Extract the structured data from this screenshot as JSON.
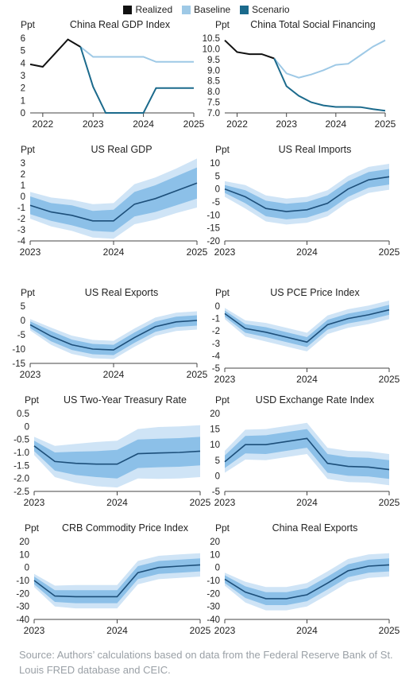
{
  "legend": {
    "items": [
      {
        "label": "Realized",
        "color": "#111111"
      },
      {
        "label": "Baseline",
        "color": "#9ec9e6"
      },
      {
        "label": "Scenario",
        "color": "#1b6a8c"
      }
    ]
  },
  "colors": {
    "realized": "#111111",
    "baseline": "#9ec9e6",
    "scenario": "#1b6a8c",
    "band_outer": "#cfe4f6",
    "band_inner": "#8cc0e8",
    "central": "#1d4f7a",
    "axis": "#444444"
  },
  "source": "Source: Authors’ calculations based on data from the Federal Reserve Bank of St. Louis FRED database and CEIC.",
  "chart_data": [
    {
      "type": "line",
      "title": "China Real GDP Index",
      "ylabel": "Ppt",
      "ylim": [
        0,
        6
      ],
      "yticks": [
        "6",
        "5",
        "4",
        "3",
        "2",
        "1",
        "0"
      ],
      "xlim": [
        2021.75,
        2025
      ],
      "xticks": [
        "2022",
        "2023",
        "2024",
        "2025"
      ],
      "series": [
        {
          "name": "Realized",
          "x": [
            2021.75,
            2022.0,
            2022.25,
            2022.5,
            2022.75
          ],
          "y": [
            3.9,
            3.7,
            4.8,
            5.9,
            5.3
          ]
        },
        {
          "name": "Baseline",
          "x": [
            2022.75,
            2023.0,
            2023.25,
            2023.5,
            2023.75,
            2024.0,
            2024.25,
            2024.5,
            2024.75,
            2025.0
          ],
          "y": [
            5.3,
            4.5,
            4.5,
            4.5,
            4.5,
            4.5,
            4.1,
            4.1,
            4.1,
            4.1
          ]
        },
        {
          "name": "Scenario",
          "x": [
            2022.75,
            2023.0,
            2023.25,
            2023.5,
            2023.75,
            2024.0,
            2024.25,
            2024.5,
            2024.75,
            2025.0
          ],
          "y": [
            5.3,
            2.1,
            0.0,
            0.0,
            0.0,
            0.0,
            2.0,
            2.0,
            2.0,
            2.0
          ]
        }
      ]
    },
    {
      "type": "line",
      "title": "China Total Social Financing",
      "ylabel": "Ppt",
      "ylim": [
        7.0,
        10.5
      ],
      "yticks": [
        "10.5",
        "10.0",
        "9.5",
        "9.0",
        "8.5",
        "8.0",
        "7.5",
        "7.0"
      ],
      "xlim": [
        2021.75,
        2025
      ],
      "xticks": [
        "2022",
        "2023",
        "2024",
        "2025"
      ],
      "series": [
        {
          "name": "Realized",
          "x": [
            2021.75,
            2022.0,
            2022.25,
            2022.5,
            2022.75
          ],
          "y": [
            10.4,
            9.85,
            9.75,
            9.75,
            9.55
          ]
        },
        {
          "name": "Baseline",
          "x": [
            2022.75,
            2023.0,
            2023.25,
            2023.5,
            2023.75,
            2024.0,
            2024.25,
            2024.5,
            2024.75,
            2025.0
          ],
          "y": [
            9.55,
            8.85,
            8.65,
            8.8,
            9.0,
            9.25,
            9.3,
            9.7,
            10.1,
            10.4
          ]
        },
        {
          "name": "Scenario",
          "x": [
            2022.75,
            2023.0,
            2023.25,
            2023.5,
            2023.75,
            2024.0,
            2024.25,
            2024.5,
            2024.75,
            2025.0
          ],
          "y": [
            9.55,
            8.25,
            7.8,
            7.5,
            7.35,
            7.28,
            7.28,
            7.27,
            7.18,
            7.1
          ]
        }
      ]
    },
    {
      "type": "area",
      "title": "US Real GDP",
      "ylabel": "Ppt",
      "ylim": [
        -4,
        3
      ],
      "yticks": [
        "3",
        "2",
        "1",
        "0",
        "-1",
        "-2",
        "-3",
        "-4"
      ],
      "xlim": [
        2023,
        2025
      ],
      "xticks": [
        "2023",
        "2024",
        "2025"
      ],
      "x": [
        2023.0,
        2023.25,
        2023.5,
        2023.75,
        2024.0,
        2024.25,
        2024.5,
        2024.75,
        2025.0
      ],
      "central": [
        -0.8,
        -1.4,
        -1.7,
        -2.2,
        -2.2,
        -0.7,
        -0.2,
        0.5,
        1.2
      ],
      "inner_band": [
        0.8,
        0.8,
        0.9,
        0.9,
        1.0,
        1.1,
        1.2,
        1.3,
        1.4
      ],
      "outer_band": [
        1.2,
        1.3,
        1.4,
        1.5,
        1.6,
        1.8,
        1.9,
        2.0,
        2.2
      ]
    },
    {
      "type": "area",
      "title": "US Real Imports",
      "ylabel": "Ppt",
      "ylim": [
        -20,
        10
      ],
      "yticks": [
        "10",
        "5",
        "0",
        "-5",
        "-10",
        "-15",
        "-20"
      ],
      "xlim": [
        2023,
        2025
      ],
      "xticks": [
        "2023",
        "2024",
        "2025"
      ],
      "x": [
        2023.0,
        2023.25,
        2023.5,
        2023.75,
        2024.0,
        2024.25,
        2024.5,
        2024.75,
        2025.0
      ],
      "central": [
        0,
        -3,
        -7.5,
        -8.7,
        -8.0,
        -5.5,
        0,
        3.5,
        4.7
      ],
      "inner_band": [
        1.5,
        2.5,
        3.0,
        3.0,
        3.0,
        3.0,
        3.0,
        3.0,
        3.0
      ],
      "outer_band": [
        3.0,
        4.5,
        5.0,
        5.0,
        5.0,
        5.0,
        5.0,
        5.0,
        5.0
      ]
    },
    {
      "type": "area",
      "title": "US Real Exports",
      "ylabel": "Ppt",
      "ylim": [
        -15,
        5
      ],
      "yticks": [
        "5",
        "0",
        "-5",
        "-10",
        "-15"
      ],
      "xlim": [
        2023,
        2025
      ],
      "xticks": [
        "2023",
        "2024",
        "2025"
      ],
      "x": [
        2023.0,
        2023.25,
        2023.5,
        2023.75,
        2024.0,
        2024.25,
        2024.5,
        2024.75,
        2025.0
      ],
      "central": [
        -1.5,
        -5.5,
        -8.5,
        -10.0,
        -10.3,
        -6.0,
        -2.2,
        -0.5,
        0
      ],
      "inner_band": [
        1.2,
        1.8,
        1.8,
        1.8,
        1.8,
        1.8,
        1.8,
        1.8,
        1.8
      ],
      "outer_band": [
        2.0,
        3.0,
        3.2,
        3.2,
        3.2,
        3.2,
        3.2,
        3.2,
        3.2
      ]
    },
    {
      "type": "area",
      "title": "US PCE Price Index",
      "ylabel": "Ppt",
      "ylim": [
        -5,
        0
      ],
      "yticks": [
        "0",
        "-1",
        "-2",
        "-3",
        "-4",
        "-5"
      ],
      "xlim": [
        2023,
        2025
      ],
      "xticks": [
        "2023",
        "2024",
        "2025"
      ],
      "x": [
        2023.0,
        2023.25,
        2023.5,
        2023.75,
        2024.0,
        2024.25,
        2024.5,
        2024.75,
        2025.0
      ],
      "central": [
        -0.6,
        -1.8,
        -2.1,
        -2.5,
        -2.9,
        -1.5,
        -1.0,
        -0.7,
        -0.3
      ],
      "inner_band": [
        0.25,
        0.35,
        0.4,
        0.4,
        0.4,
        0.4,
        0.4,
        0.4,
        0.4
      ],
      "outer_band": [
        0.45,
        0.65,
        0.75,
        0.75,
        0.75,
        0.75,
        0.75,
        0.75,
        0.75
      ]
    },
    {
      "type": "area",
      "title": "US Two-Year Treasury Rate",
      "ylabel": "Ppt",
      "ylim": [
        -2.5,
        0.5
      ],
      "yticks": [
        "0.5",
        "0",
        "-0.5",
        "-1.0",
        "-1.5",
        "-2.0",
        "-2.5"
      ],
      "xlim": [
        2023,
        2025
      ],
      "xticks": [
        "2023",
        "2024",
        "2025"
      ],
      "x": [
        2023.0,
        2023.25,
        2023.5,
        2023.75,
        2024.0,
        2024.25,
        2024.5,
        2024.75,
        2025.0
      ],
      "central": [
        -0.75,
        -1.35,
        -1.42,
        -1.45,
        -1.45,
        -1.05,
        -1.02,
        -1.0,
        -0.95
      ],
      "inner_band": [
        0.2,
        0.35,
        0.45,
        0.5,
        0.55,
        0.55,
        0.55,
        0.55,
        0.55
      ],
      "outer_band": [
        0.35,
        0.6,
        0.75,
        0.85,
        0.9,
        0.95,
        1.0,
        1.0,
        1.0
      ]
    },
    {
      "type": "area",
      "title": "USD Exchange Rate Index",
      "ylabel": "Ppt",
      "ylim": [
        -5,
        20
      ],
      "yticks": [
        "20",
        "15",
        "10",
        "5",
        "0",
        "-5"
      ],
      "xlim": [
        2023,
        2025
      ],
      "xticks": [
        "2023",
        "2024",
        "2025"
      ],
      "x": [
        2023.0,
        2023.25,
        2023.5,
        2023.75,
        2024.0,
        2024.25,
        2024.5,
        2024.75,
        2025.0
      ],
      "central": [
        4.5,
        10.0,
        10.0,
        11.0,
        12.0,
        4.0,
        3.0,
        2.8,
        2.0
      ],
      "inner_band": [
        2.0,
        2.8,
        3.0,
        3.0,
        3.0,
        3.0,
        3.0,
        3.0,
        3.0
      ],
      "outer_band": [
        3.5,
        4.8,
        5.0,
        5.0,
        5.0,
        5.0,
        5.0,
        5.0,
        5.0
      ]
    },
    {
      "type": "area",
      "title": "CRB Commodity Price Index",
      "ylabel": "Ppt",
      "ylim": [
        -40,
        20
      ],
      "yticks": [
        "20",
        "10",
        "0",
        "-10",
        "-20",
        "-30",
        "-40"
      ],
      "xlim": [
        2023,
        2025
      ],
      "xticks": [
        "2023",
        "2024",
        "2025"
      ],
      "x": [
        2023.0,
        2023.25,
        2023.5,
        2023.75,
        2024.0,
        2024.25,
        2024.5,
        2024.75,
        2025.0
      ],
      "central": [
        -10,
        -22,
        -22.5,
        -22.5,
        -22.5,
        -4.0,
        0,
        1.0,
        2.0
      ],
      "inner_band": [
        3.0,
        4.5,
        5.0,
        5.0,
        5.0,
        5.0,
        5.0,
        5.0,
        5.0
      ],
      "outer_band": [
        5.0,
        8.0,
        9.0,
        9.0,
        9.0,
        9.0,
        9.0,
        9.0,
        9.0
      ]
    },
    {
      "type": "area",
      "title": "China Real Exports",
      "ylabel": "Ppt",
      "ylim": [
        -40,
        20
      ],
      "yticks": [
        "20",
        "10",
        "0",
        "-10",
        "-20",
        "-30",
        "-40"
      ],
      "xlim": [
        2023,
        2025
      ],
      "xticks": [
        "2023",
        "2024",
        "2025"
      ],
      "x": [
        2023.0,
        2023.25,
        2023.5,
        2023.75,
        2024.0,
        2024.25,
        2024.5,
        2024.75,
        2025.0
      ],
      "central": [
        -9,
        -19,
        -24,
        -24,
        -21,
        -12,
        -2.5,
        1.0,
        2.0
      ],
      "inner_band": [
        3.0,
        4.5,
        5.0,
        5.0,
        5.0,
        5.0,
        5.0,
        5.0,
        5.0
      ],
      "outer_band": [
        5.0,
        8.0,
        9.0,
        9.0,
        9.0,
        9.0,
        9.0,
        9.0,
        9.0
      ]
    }
  ]
}
